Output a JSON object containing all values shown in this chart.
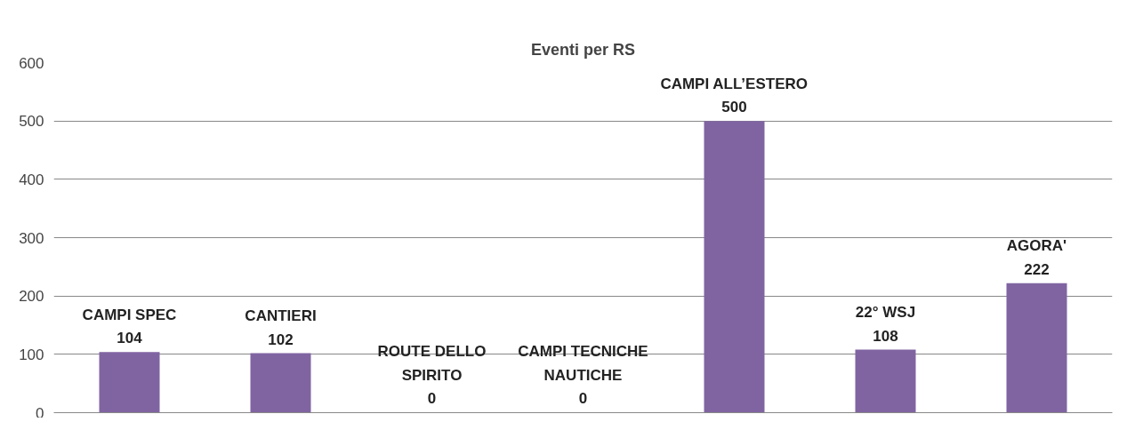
{
  "chart_data": {
    "type": "bar",
    "title": "Eventi per RS",
    "categories": [
      "CAMPI SPEC",
      "CANTIERI",
      "ROUTE DELLO SPIRITO",
      "CAMPI TECNICHE NAUTICHE",
      "CAMPI ALL’ESTERO",
      "22° WSJ",
      "AGORA'"
    ],
    "values": [
      104,
      102,
      0,
      0,
      500,
      108,
      222
    ],
    "color": "#8064a2",
    "ylim": [
      0,
      600
    ],
    "yticks": [
      0,
      100,
      200,
      300,
      400,
      500,
      600
    ],
    "grid": "y",
    "tick_labels": "y",
    "data_labels": true
  }
}
